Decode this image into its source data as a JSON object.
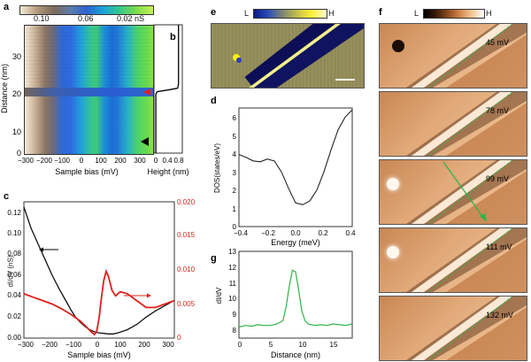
{
  "panels": {
    "a": {
      "label": "a",
      "colorbar_ticks": [
        "0.10",
        "0.06",
        "0.02 nS"
      ],
      "ylabel": "Distance (nm)",
      "xlabel": "Sample bias (mV)",
      "yticks": [
        "0",
        "10",
        "20",
        "30"
      ],
      "xticks": [
        "−300",
        "−200",
        "−100",
        "0",
        "100",
        "200",
        "300"
      ]
    },
    "b": {
      "label": "b",
      "xlabel": "Height (nm)",
      "xticks": [
        "0",
        "0.4",
        "0.8"
      ]
    },
    "c": {
      "label": "c",
      "ylabel": "dI/dV (nS)",
      "xlabel": "Sample bias (mV)",
      "yticks_left": [
        "0.00",
        "0.02",
        "0.04",
        "0.06",
        "0.08",
        "0.10",
        "0.12"
      ],
      "yticks_right": [
        "0",
        "0.005",
        "0.010",
        "0.015",
        "0.020"
      ],
      "xticks": [
        "−300",
        "−200",
        "−100",
        "0",
        "100",
        "200",
        "300"
      ]
    },
    "d": {
      "label": "d",
      "ylabel": "DOS(states/eV)",
      "xlabel": "Energy (meV)",
      "yticks": [
        "0",
        "1",
        "2",
        "3",
        "4",
        "5",
        "6"
      ],
      "xticks": [
        "−0.4",
        "−0.2",
        "0.0",
        "0.2",
        "0.4"
      ]
    },
    "e": {
      "label": "e",
      "colorbar_low": "L",
      "colorbar_high": "H"
    },
    "f": {
      "label": "f",
      "colorbar_low": "L",
      "colorbar_high": "H",
      "energies": [
        "45 mV",
        "78 mV",
        "99 mV",
        "111 mV",
        "132 mV"
      ]
    },
    "g": {
      "label": "g",
      "ylabel": "dI/dV",
      "xlabel": "Distance (nm)",
      "yticks": [
        "8",
        "9",
        "10",
        "11",
        "12",
        "13"
      ],
      "xticks": [
        "0",
        "5",
        "10",
        "15"
      ]
    }
  },
  "colors": {
    "black_curve": "#111111",
    "red_curve": "#e0201c",
    "green_curve": "#2fb34a"
  },
  "chart_data": [
    {
      "type": "line",
      "id": "c",
      "xlim": [
        -300,
        340
      ],
      "ylim": [
        0,
        0.13
      ],
      "y2lim": [
        0,
        0.02
      ],
      "series": [
        {
          "axis": "left",
          "x": [
            -300,
            -270,
            -240,
            -210,
            -180,
            -150,
            -120,
            -100,
            -80,
            -60,
            -40,
            -20,
            0,
            20,
            40,
            60,
            80,
            100,
            140,
            180,
            220,
            260,
            300,
            340
          ],
          "y": [
            0.125,
            0.105,
            0.09,
            0.075,
            0.06,
            0.047,
            0.035,
            0.027,
            0.02,
            0.015,
            0.011,
            0.008,
            0.006,
            0.005,
            0.0045,
            0.004,
            0.004,
            0.005,
            0.008,
            0.013,
            0.02,
            0.026,
            0.031,
            0.036
          ]
        },
        {
          "axis": "right",
          "x": [
            -300,
            -260,
            -220,
            -180,
            -140,
            -100,
            -60,
            -30,
            -10,
            0,
            10,
            20,
            30,
            40,
            50,
            60,
            75,
            90,
            110,
            140,
            180,
            220,
            260,
            300,
            340
          ],
          "y": [
            0.0065,
            0.006,
            0.0055,
            0.005,
            0.0043,
            0.0035,
            0.0025,
            0.0015,
            0.0008,
            0.0005,
            0.001,
            0.003,
            0.006,
            0.0085,
            0.0098,
            0.009,
            0.007,
            0.0062,
            0.0068,
            0.0065,
            0.0055,
            0.0045,
            0.0045,
            0.005,
            0.0055
          ]
        }
      ]
    },
    {
      "type": "line",
      "id": "d",
      "xlim": [
        -0.4,
        0.4
      ],
      "ylim": [
        0,
        6.5
      ],
      "x": [
        -0.4,
        -0.35,
        -0.3,
        -0.25,
        -0.2,
        -0.15,
        -0.1,
        -0.05,
        0.0,
        0.05,
        0.1,
        0.15,
        0.2,
        0.25,
        0.3,
        0.35,
        0.4
      ],
      "y": [
        3.95,
        3.8,
        3.6,
        3.55,
        3.7,
        3.6,
        3.0,
        2.1,
        1.3,
        1.2,
        1.4,
        2.0,
        3.0,
        4.2,
        5.3,
        6.0,
        6.4
      ]
    },
    {
      "type": "line",
      "id": "g",
      "xlim": [
        0,
        18
      ],
      "ylim": [
        7.5,
        13
      ],
      "x": [
        0,
        1,
        2,
        3,
        4,
        5,
        6,
        7,
        7.5,
        8,
        8.5,
        9,
        9.5,
        10,
        10.5,
        11,
        12,
        13,
        14,
        15,
        16,
        17,
        18
      ],
      "y": [
        8.2,
        8.3,
        8.25,
        8.35,
        8.3,
        8.3,
        8.4,
        8.6,
        9.5,
        10.8,
        11.8,
        11.7,
        10.5,
        9.2,
        8.6,
        8.4,
        8.3,
        8.35,
        8.3,
        8.4,
        8.35,
        8.3,
        8.4
      ]
    },
    {
      "type": "line",
      "id": "b",
      "xlim": [
        0,
        0.9
      ],
      "ylim": [
        0,
        38
      ],
      "x": [
        0.78,
        0.78,
        0.75,
        0.5,
        0.1,
        0.06,
        0.06
      ],
      "y": [
        38,
        20.5,
        19.2,
        18.8,
        18.2,
        17.5,
        0
      ]
    }
  ]
}
